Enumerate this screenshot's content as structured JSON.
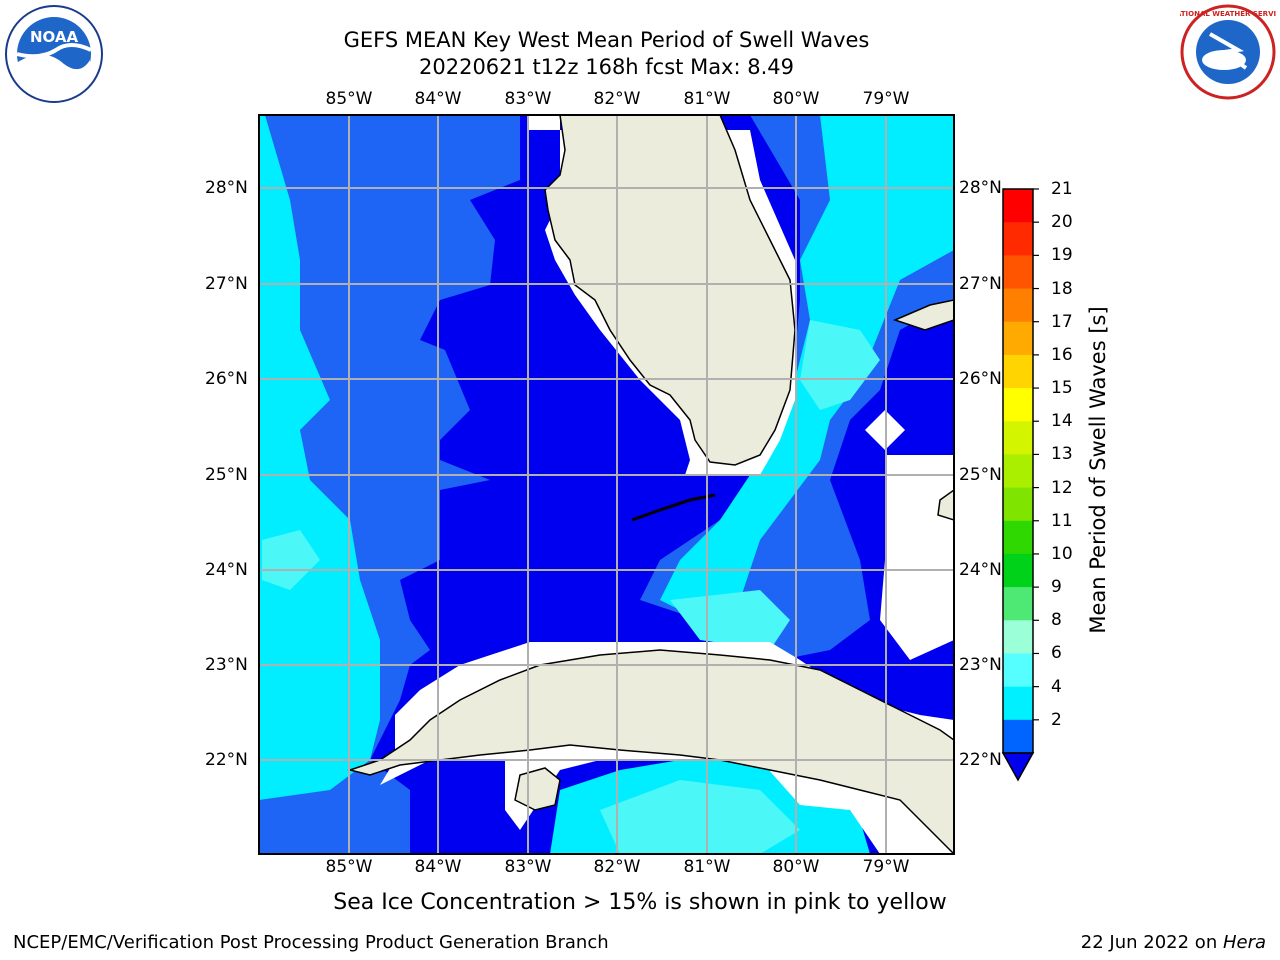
{
  "title_line1": "GEFS MEAN Key West Mean Period of Swell Waves",
  "title_line2": "20220621 t12z 168h fcst   Max: 8.49",
  "lon_labels": [
    "85°W",
    "84°W",
    "83°W",
    "82°W",
    "81°W",
    "80°W",
    "79°W"
  ],
  "lat_labels": [
    "28°N",
    "27°N",
    "26°N",
    "25°N",
    "24°N",
    "23°N",
    "22°N"
  ],
  "colorbar": {
    "label": "Mean Period of Swell Waves [s]",
    "ticks": [
      "21",
      "20",
      "19",
      "18",
      "17",
      "16",
      "15",
      "14",
      "13",
      "12",
      "11",
      "10",
      "9",
      "8",
      "6",
      "4",
      "2"
    ],
    "colors": [
      "#ff0000",
      "#ff2a00",
      "#ff5500",
      "#ff7f00",
      "#ffaa00",
      "#ffd400",
      "#ffff00",
      "#d4f500",
      "#aaee00",
      "#7fe500",
      "#2ed800",
      "#00d21a",
      "#4ee874",
      "#9bffd7",
      "#55ffff",
      "#00f0ff",
      "#0064ff"
    ],
    "extend_color": "#0000ee"
  },
  "map": {
    "land_color": "#ececdc",
    "water_colors": [
      "#0000f0",
      "#1e64f5",
      "#00eeff",
      "#4cf7f7"
    ]
  },
  "logos": {
    "noaa_text": "NOAA",
    "nws_text": "NATIONAL WEATHER SERVICE"
  },
  "ice_note": "Sea Ice Concentration > 15% is shown in pink to yellow",
  "footer_left": "NCEP/EMC/Verification Post Processing Product Generation Branch",
  "footer_date": "22 Jun 2022 on ",
  "footer_host": "Hera"
}
